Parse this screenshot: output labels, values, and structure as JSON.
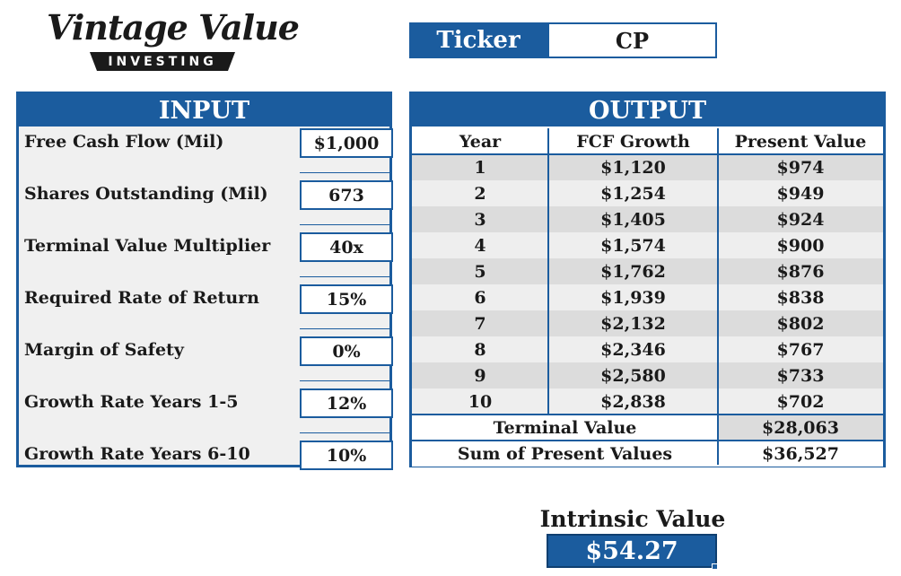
{
  "logo": {
    "script": "Vintage Value",
    "sub": "INVESTING"
  },
  "ticker": {
    "label": "Ticker",
    "value": "CP"
  },
  "input": {
    "header": "INPUT",
    "rows": [
      {
        "label": "Free Cash Flow (Mil)",
        "value": "$1,000"
      },
      {
        "label": "Shares Outstanding (Mil)",
        "value": "673"
      },
      {
        "label": "Terminal Value Multiplier",
        "value": "40x"
      },
      {
        "label": "Required Rate of Return",
        "value": "15%"
      },
      {
        "label": "Margin of Safety",
        "value": "0%"
      },
      {
        "label": "Growth Rate Years 1-5",
        "value": "12%"
      },
      {
        "label": "Growth Rate Years 6-10",
        "value": "10%"
      }
    ]
  },
  "output": {
    "header": "OUTPUT",
    "columns": [
      "Year",
      "FCF Growth",
      "Present Value"
    ],
    "rows": [
      {
        "year": "1",
        "fcf": "$1,120",
        "pv": "$974"
      },
      {
        "year": "2",
        "fcf": "$1,254",
        "pv": "$949"
      },
      {
        "year": "3",
        "fcf": "$1,405",
        "pv": "$924"
      },
      {
        "year": "4",
        "fcf": "$1,574",
        "pv": "$900"
      },
      {
        "year": "5",
        "fcf": "$1,762",
        "pv": "$876"
      },
      {
        "year": "6",
        "fcf": "$1,939",
        "pv": "$838"
      },
      {
        "year": "7",
        "fcf": "$2,132",
        "pv": "$802"
      },
      {
        "year": "8",
        "fcf": "$2,346",
        "pv": "$767"
      },
      {
        "year": "9",
        "fcf": "$2,580",
        "pv": "$733"
      },
      {
        "year": "10",
        "fcf": "$2,838",
        "pv": "$702"
      }
    ],
    "terminal": {
      "label": "Terminal Value",
      "value": "$28,063"
    },
    "sum": {
      "label": "Sum of Present Values",
      "value": "$36,527"
    }
  },
  "intrinsic": {
    "label": "Intrinsic Value",
    "value": "$54.27"
  },
  "colors": {
    "accent": "#1b5c9e",
    "panel_bg": "#f0f0f0",
    "row_shade": "#dcdcdc"
  }
}
